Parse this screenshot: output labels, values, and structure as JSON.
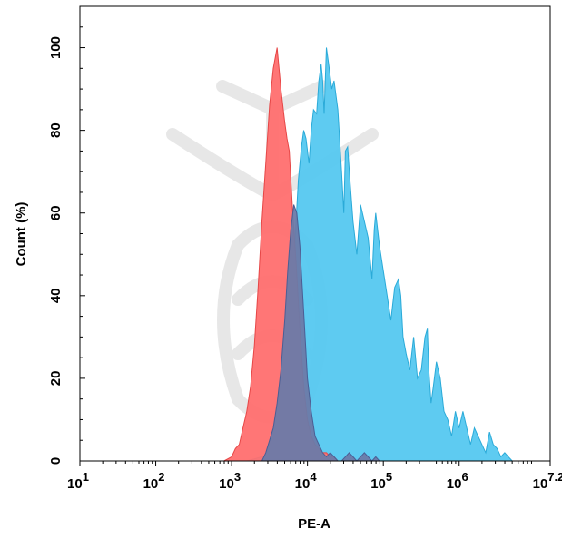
{
  "chart_data": {
    "type": "area",
    "xlabel": "PE-A",
    "ylabel": "Count  (%)",
    "xscale": "log10",
    "xlim": [
      1,
      7.2
    ],
    "ylim": [
      0,
      110
    ],
    "x_ticks": [
      {
        "base": "10",
        "exp": "1"
      },
      {
        "base": "10",
        "exp": "2"
      },
      {
        "base": "10",
        "exp": "3"
      },
      {
        "base": "10",
        "exp": "4"
      },
      {
        "base": "10",
        "exp": "5"
      },
      {
        "base": "10",
        "exp": "6"
      },
      {
        "base": "10",
        "exp": "7.2"
      }
    ],
    "x_tick_values": [
      1,
      2,
      3,
      4,
      5,
      6,
      7.2
    ],
    "y_ticks": [
      "0",
      "20",
      "40",
      "60",
      "80",
      "100"
    ],
    "y_tick_values": [
      0,
      20,
      40,
      60,
      80,
      100
    ],
    "grid": false,
    "series": [
      {
        "color": "#55c8f0",
        "stroke": "#2aaad8",
        "x": [
          3.2,
          3.4,
          3.5,
          3.6,
          3.7,
          3.78,
          3.84,
          3.88,
          3.92,
          3.95,
          3.98,
          4.02,
          4.05,
          4.08,
          4.12,
          4.15,
          4.18,
          4.2,
          4.22,
          4.25,
          4.28,
          4.32,
          4.35,
          4.4,
          4.45,
          4.48,
          4.5,
          4.53,
          4.56,
          4.6,
          4.65,
          4.7,
          4.75,
          4.8,
          4.85,
          4.88,
          4.9,
          4.95,
          5.0,
          5.05,
          5.1,
          5.15,
          5.2,
          5.23,
          5.26,
          5.3,
          5.35,
          5.4,
          5.45,
          5.5,
          5.55,
          5.58,
          5.6,
          5.63,
          5.66,
          5.7,
          5.75,
          5.8,
          5.85,
          5.9,
          5.95,
          6.0,
          6.05,
          6.1,
          6.15,
          6.2,
          6.25,
          6.3,
          6.35,
          6.4,
          6.45,
          6.5,
          6.55,
          6.6,
          6.65,
          6.7,
          6.75,
          6.8,
          6.85,
          6.9,
          6.95,
          7.0,
          7.05,
          7.1,
          7.15
        ],
        "y": [
          0,
          1,
          2,
          5,
          12,
          30,
          55,
          68,
          76,
          80,
          78,
          72,
          80,
          85,
          84,
          92,
          96,
          92,
          84,
          100,
          96,
          90,
          92,
          85,
          70,
          60,
          75,
          76,
          68,
          58,
          50,
          62,
          58,
          54,
          44,
          56,
          60,
          52,
          46,
          40,
          34,
          42,
          44,
          40,
          30,
          26,
          22,
          30,
          20,
          22,
          30,
          32,
          22,
          14,
          18,
          24,
          20,
          12,
          10,
          6,
          12,
          8,
          12,
          8,
          4,
          8,
          6,
          4,
          2,
          7,
          4,
          3,
          1,
          2,
          1,
          0,
          0,
          0,
          0,
          0,
          0,
          0,
          0,
          0,
          0
        ]
      },
      {
        "color": "#ff6f6f",
        "stroke": "#e64646",
        "x": [
          2.9,
          3.0,
          3.05,
          3.1,
          3.15,
          3.2,
          3.25,
          3.3,
          3.35,
          3.4,
          3.45,
          3.5,
          3.55,
          3.6,
          3.65,
          3.7,
          3.73,
          3.76,
          3.8,
          3.85,
          3.9,
          3.95,
          4.0,
          4.05,
          4.1,
          4.15,
          4.2,
          4.25,
          4.3,
          4.35,
          4.4,
          4.5
        ],
        "y": [
          0,
          1,
          3,
          4,
          8,
          12,
          18,
          28,
          42,
          58,
          72,
          86,
          95,
          100,
          90,
          82,
          78,
          75,
          62,
          48,
          32,
          18,
          10,
          6,
          4,
          3,
          2,
          2,
          1,
          1,
          0,
          0
        ]
      },
      {
        "color": "#6b7aa8",
        "stroke": "#4b5e94",
        "x": [
          3.4,
          3.45,
          3.5,
          3.55,
          3.6,
          3.65,
          3.7,
          3.74,
          3.78,
          3.82,
          3.86,
          3.9,
          3.95,
          4.0,
          4.05,
          4.1,
          4.15,
          4.2,
          4.25,
          4.3,
          4.35,
          4.4,
          4.45,
          4.5,
          4.55,
          4.6,
          4.65,
          4.7,
          4.75,
          4.8,
          4.85,
          4.9,
          4.95,
          5.0,
          5.05,
          5.1
        ],
        "y": [
          0,
          2,
          5,
          8,
          14,
          22,
          34,
          46,
          56,
          62,
          60,
          52,
          36,
          20,
          12,
          6,
          4,
          2,
          1,
          2,
          1,
          0,
          0,
          1,
          2,
          1,
          0,
          1,
          2,
          1,
          0,
          1,
          0,
          0,
          0,
          0
        ]
      }
    ]
  }
}
